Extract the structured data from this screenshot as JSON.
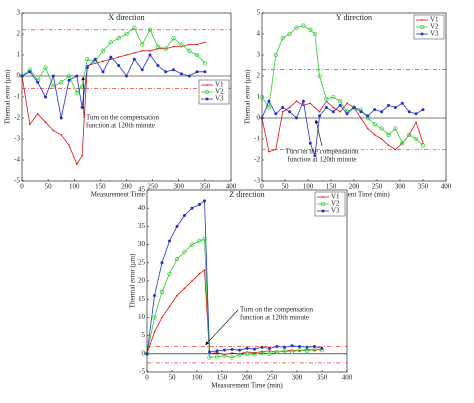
{
  "chart_data": [
    {
      "type": "line",
      "title": "X direction",
      "xlabel": "Measurement Time (min)",
      "ylabel": "Thermal error (μm)",
      "annotation": [
        "Turn on the compensation",
        "function at 120th minute"
      ],
      "x": [
        0,
        15,
        30,
        45,
        60,
        75,
        90,
        105,
        115,
        125,
        140,
        155,
        170,
        185,
        200,
        215,
        230,
        245,
        260,
        275,
        290,
        305,
        320,
        335,
        350
      ],
      "xlim": [
        0,
        400
      ],
      "xticks": [
        0,
        50,
        100,
        150,
        200,
        250,
        300,
        350,
        400
      ],
      "ylim": [
        -5,
        3
      ],
      "yticks": [
        -5,
        -4,
        -3,
        -2,
        -1,
        0,
        1,
        2,
        3
      ],
      "hlines": [
        2.2,
        -0.6
      ],
      "legend": "lower right",
      "series": [
        {
          "name": "V1",
          "color": "#e01010",
          "values": [
            0,
            -2.3,
            -1.8,
            -2.2,
            -2.6,
            -2.8,
            -3.3,
            -4.2,
            -3.8,
            0.5,
            0.6,
            0.7,
            0.8,
            0.9,
            1.0,
            1.1,
            1.2,
            1.2,
            1.3,
            1.3,
            1.4,
            1.4,
            1.5,
            1.5,
            1.6
          ]
        },
        {
          "name": "V2",
          "color": "#33cc33",
          "values": [
            0,
            0.3,
            -0.2,
            0.4,
            -0.5,
            -0.3,
            0,
            -0.8,
            -0.5,
            0.8,
            0.7,
            1.2,
            1.6,
            1.8,
            2.0,
            2.3,
            1.5,
            2.2,
            1.4,
            1.3,
            1.8,
            1.5,
            1.2,
            1.0,
            0.6
          ]
        },
        {
          "name": "V3",
          "color": "#2233cc",
          "values": [
            0,
            0.2,
            -0.3,
            -1.0,
            0,
            -2.0,
            -0.2,
            0,
            -1.5,
            0.4,
            0.8,
            0.2,
            0.9,
            0.5,
            0,
            0.8,
            0.3,
            1.0,
            0.5,
            0.2,
            0.3,
            0.1,
            0,
            0.2,
            0.2
          ]
        }
      ]
    },
    {
      "type": "line",
      "title": "Y direction",
      "xlabel": "Measurement Time (min)",
      "ylabel": "Thermal error (μm)",
      "annotation": [
        "Turn on the compensation",
        "function at 120th minute"
      ],
      "x": [
        0,
        15,
        30,
        45,
        60,
        75,
        90,
        105,
        115,
        125,
        140,
        155,
        170,
        185,
        200,
        215,
        230,
        245,
        260,
        275,
        290,
        305,
        320,
        335,
        350
      ],
      "xlim": [
        0,
        400
      ],
      "xticks": [
        0,
        50,
        100,
        150,
        200,
        250,
        300,
        350,
        400
      ],
      "ylim": [
        -3,
        5
      ],
      "yticks": [
        -3,
        -2,
        -1,
        0,
        1,
        2,
        3,
        4,
        5
      ],
      "hlines": [
        2.3,
        -1.5
      ],
      "legend": "upper right",
      "series": [
        {
          "name": "V1",
          "color": "#e01010",
          "values": [
            0,
            -1.6,
            -1.5,
            0.3,
            0.5,
            0.8,
            0.6,
            0.7,
            0.5,
            0.3,
            0.8,
            0.5,
            0.3,
            0.7,
            0.5,
            0,
            -0.5,
            -0.8,
            -1.0,
            -1.3,
            -1.5,
            -1.2,
            -0.8,
            -0.2,
            -1.2
          ]
        },
        {
          "name": "V2",
          "color": "#33cc33",
          "values": [
            1.0,
            0.5,
            3.0,
            3.8,
            4.0,
            4.3,
            4.4,
            4.2,
            4.0,
            2.0,
            0.9,
            1.0,
            0.8,
            0.3,
            0.5,
            0.4,
            0,
            -0.3,
            -0.5,
            -0.8,
            -0.5,
            -1.2,
            -0.8,
            -1.0,
            -1.3
          ]
        },
        {
          "name": "V3",
          "color": "#2233cc",
          "values": [
            0,
            0.8,
            0.2,
            0.5,
            0.3,
            0,
            0.8,
            -1.2,
            -1.8,
            0.1,
            0.5,
            0.3,
            0.6,
            0.2,
            0.5,
            0.3,
            0.1,
            0.4,
            0.3,
            0.6,
            0.5,
            0.7,
            0.3,
            0.2,
            0.4
          ]
        }
      ]
    },
    {
      "type": "line",
      "title": "Z direction",
      "xlabel": "Measurement Time (min)",
      "ylabel": "Thermal error (μm)",
      "annotation": [
        "Turn on the compensation",
        "function at 120th minute"
      ],
      "x": [
        0,
        15,
        30,
        45,
        60,
        75,
        90,
        105,
        115,
        125,
        140,
        155,
        170,
        185,
        200,
        215,
        230,
        245,
        260,
        275,
        290,
        305,
        320,
        335,
        350
      ],
      "xlim": [
        0,
        400
      ],
      "xticks": [
        0,
        50,
        100,
        150,
        200,
        250,
        300,
        350,
        400
      ],
      "ylim": [
        -5,
        45
      ],
      "yticks": [
        -5,
        0,
        5,
        10,
        15,
        20,
        25,
        30,
        35,
        40,
        45
      ],
      "hlines": [
        2,
        -2.5
      ],
      "legend": "upper right",
      "series": [
        {
          "name": "V1",
          "color": "#e01010",
          "values": [
            0,
            6,
            10,
            13,
            16,
            18,
            20,
            22,
            23,
            0,
            0.3,
            -0.2,
            0.2,
            0,
            0.5,
            0.3,
            0.6,
            0.8,
            0.5,
            0.7,
            1.0,
            0.8,
            1.2,
            1.0,
            1.3
          ]
        },
        {
          "name": "V2",
          "color": "#33cc33",
          "values": [
            0,
            10,
            17,
            22,
            26,
            28,
            30,
            31,
            31.5,
            -1,
            -0.8,
            -0.5,
            -1,
            -0.3,
            0,
            -0.2,
            0.3,
            0,
            0.5,
            0.8,
            0.5,
            1.0,
            0.8,
            1.2,
            1.0
          ]
        },
        {
          "name": "V3",
          "color": "#2233cc",
          "values": [
            0,
            16,
            25,
            31,
            35,
            38,
            40,
            41,
            42,
            0.5,
            0.8,
            1.0,
            1.2,
            1.0,
            1.5,
            1.3,
            1.8,
            1.5,
            2.0,
            1.8,
            2.2,
            2.0,
            1.8,
            2.0,
            1.5
          ]
        }
      ]
    }
  ]
}
